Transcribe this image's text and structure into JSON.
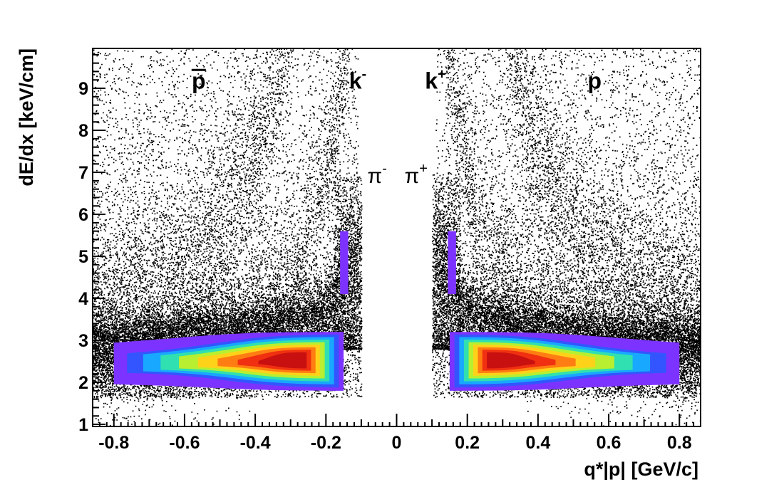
{
  "chart_data": {
    "type": "heatmap",
    "title": "",
    "xlabel": "q*|p| [GeV/c]",
    "ylabel": "dE/dx [keV/cm]",
    "xlim": [
      -0.86,
      0.86
    ],
    "ylim": [
      0.95,
      9.95
    ],
    "x_ticks": [
      -0.8,
      -0.6,
      -0.4,
      -0.2,
      0,
      0.2,
      0.4,
      0.6,
      0.8
    ],
    "x_tick_labels": [
      "-0.8",
      "-0.6",
      "-0.4",
      "-0.2",
      "0",
      "0.2",
      "0.4",
      "0.6",
      "0.8"
    ],
    "y_ticks": [
      1,
      2,
      3,
      4,
      5,
      6,
      7,
      8,
      9
    ],
    "y_tick_labels": [
      "1",
      "2",
      "3",
      "4",
      "5",
      "6",
      "7",
      "8",
      "9"
    ],
    "grid": false,
    "colors": {
      "scatter": "#000000",
      "density_scale": [
        "#7d33ff",
        "#3355ff",
        "#18a8ff",
        "#30e0b0",
        "#b8ef30",
        "#ffd21a",
        "#ff7d12",
        "#f03010",
        "#c81010"
      ]
    },
    "core_bands": [
      {
        "side": "negative",
        "x_range": [
          -0.8,
          -0.15
        ],
        "dEdx_range": [
          1.8,
          3.2
        ],
        "peak_x": -0.27,
        "peak_dEdx": 2.6
      },
      {
        "side": "positive",
        "x_range": [
          0.15,
          0.8
        ],
        "dEdx_range": [
          1.8,
          3.2
        ],
        "peak_x": 0.28,
        "peak_dEdx": 2.6
      }
    ],
    "annotations": [
      {
        "text": "p",
        "overline": true,
        "x": -0.56,
        "y": 9.2
      },
      {
        "text": "k",
        "sup": "-",
        "x": -0.11,
        "y": 9.2
      },
      {
        "text": "k",
        "sup": "+",
        "x": 0.11,
        "y": 9.2
      },
      {
        "text": "p",
        "overline": false,
        "x": 0.56,
        "y": 9.2
      },
      {
        "text": "π",
        "sup": "-",
        "x": -0.055,
        "y": 6.95
      },
      {
        "text": "π",
        "sup": "+",
        "x": 0.055,
        "y": 6.95
      }
    ]
  }
}
